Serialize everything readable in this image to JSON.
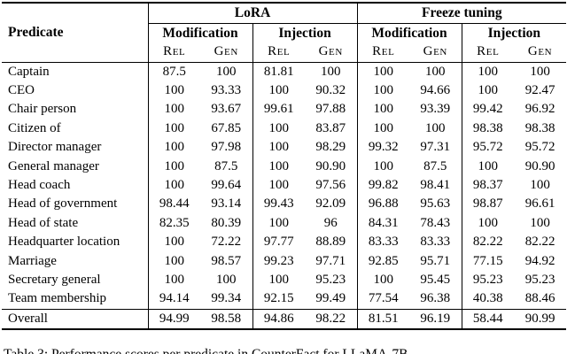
{
  "table": {
    "col_predicate": "Predicate",
    "groups": [
      {
        "label": "LoRA",
        "subgroups": [
          "Modification",
          "Injection"
        ]
      },
      {
        "label": "Freeze tuning",
        "subgroups": [
          "Modification",
          "Injection"
        ]
      }
    ],
    "metric_labels": [
      "Rel",
      "Gen"
    ],
    "rows": [
      {
        "predicate": "Captain",
        "values": [
          "87.5",
          "100",
          "81.81",
          "100",
          "100",
          "100",
          "100",
          "100"
        ]
      },
      {
        "predicate": "CEO",
        "values": [
          "100",
          "93.33",
          "100",
          "90.32",
          "100",
          "94.66",
          "100",
          "92.47"
        ]
      },
      {
        "predicate": "Chair person",
        "values": [
          "100",
          "93.67",
          "99.61",
          "97.88",
          "100",
          "93.39",
          "99.42",
          "96.92"
        ]
      },
      {
        "predicate": "Citizen of",
        "values": [
          "100",
          "67.85",
          "100",
          "83.87",
          "100",
          "100",
          "98.38",
          "98.38"
        ]
      },
      {
        "predicate": "Director manager",
        "values": [
          "100",
          "97.98",
          "100",
          "98.29",
          "99.32",
          "97.31",
          "95.72",
          "95.72"
        ]
      },
      {
        "predicate": "General manager",
        "values": [
          "100",
          "87.5",
          "100",
          "90.90",
          "100",
          "87.5",
          "100",
          "90.90"
        ]
      },
      {
        "predicate": "Head coach",
        "values": [
          "100",
          "99.64",
          "100",
          "97.56",
          "99.82",
          "98.41",
          "98.37",
          "100"
        ]
      },
      {
        "predicate": "Head of government",
        "values": [
          "98.44",
          "93.14",
          "99.43",
          "92.09",
          "96.88",
          "95.63",
          "98.87",
          "96.61"
        ]
      },
      {
        "predicate": "Head of state",
        "values": [
          "82.35",
          "80.39",
          "100",
          "96",
          "84.31",
          "78.43",
          "100",
          "100"
        ]
      },
      {
        "predicate": "Headquarter location",
        "values": [
          "100",
          "72.22",
          "97.77",
          "88.89",
          "83.33",
          "83.33",
          "82.22",
          "82.22"
        ]
      },
      {
        "predicate": "Marriage",
        "values": [
          "100",
          "98.57",
          "99.23",
          "97.71",
          "92.85",
          "95.71",
          "77.15",
          "94.92"
        ]
      },
      {
        "predicate": "Secretary general",
        "values": [
          "100",
          "100",
          "100",
          "95.23",
          "100",
          "95.45",
          "95.23",
          "95.23"
        ]
      },
      {
        "predicate": "Team membership",
        "values": [
          "94.14",
          "99.34",
          "92.15",
          "99.49",
          "77.54",
          "96.38",
          "40.38",
          "88.46"
        ]
      }
    ],
    "overall": {
      "predicate": "Overall",
      "values": [
        "94.99",
        "98.58",
        "94.86",
        "98.22",
        "81.51",
        "96.19",
        "58.44",
        "90.99"
      ]
    }
  },
  "caption": "Table 3: Performance scores per predicate in CounterFact for LLaMA-7B"
}
